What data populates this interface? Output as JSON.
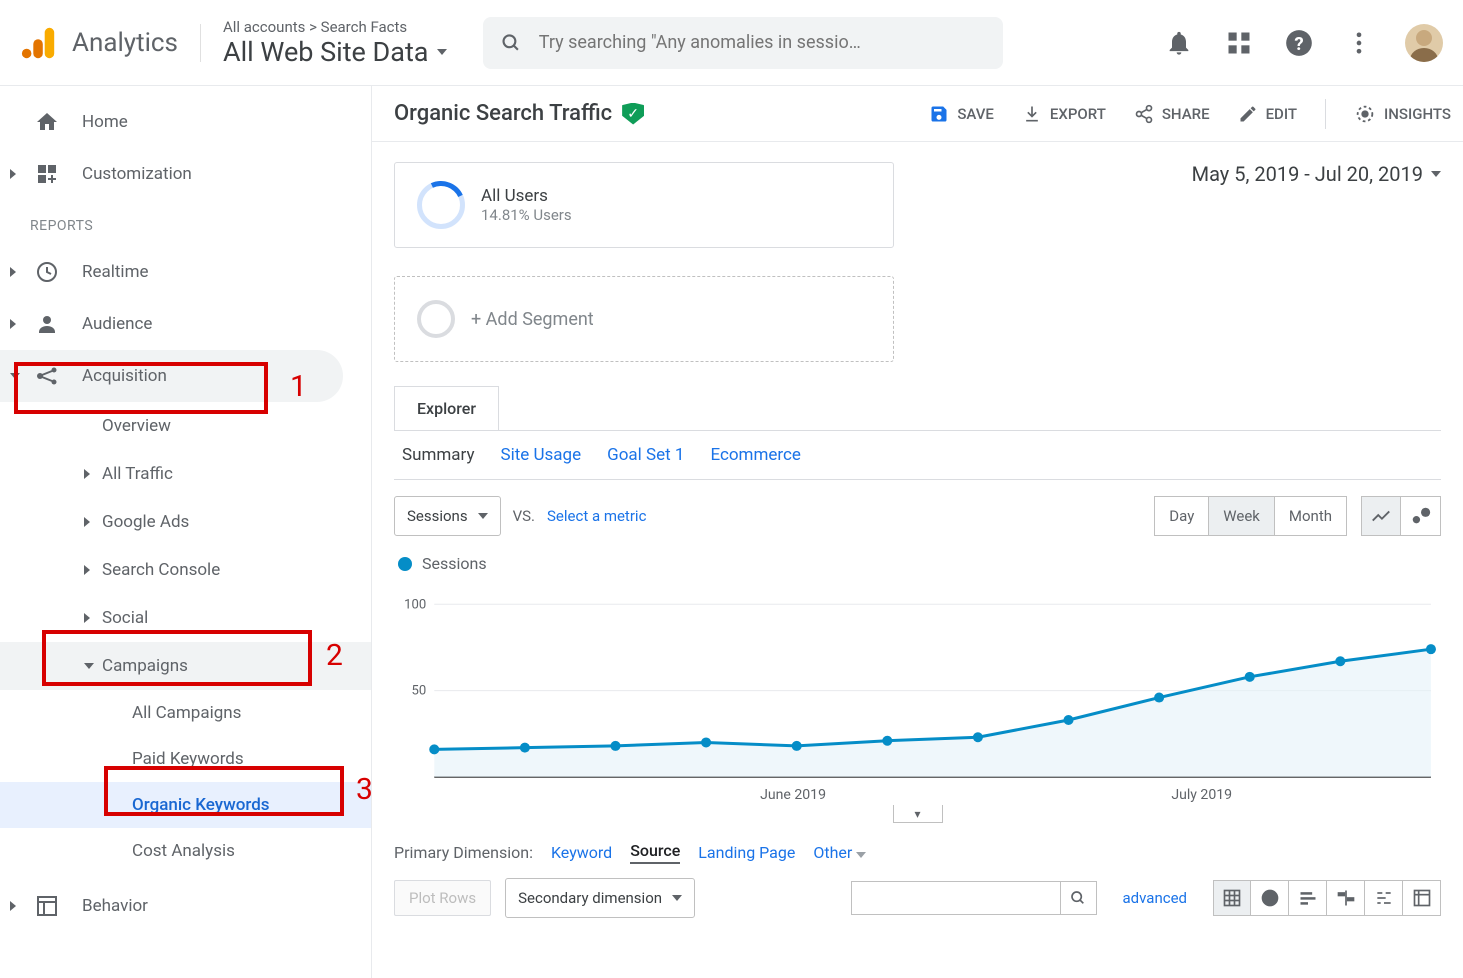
{
  "header": {
    "brand": "Analytics",
    "breadcrumb": "All accounts > Search Facts",
    "data_view": "All Web Site Data",
    "search_placeholder": "Try searching \"Any anomalies in sessio…"
  },
  "sidebar": {
    "home": "Home",
    "customization": "Customization",
    "reports_label": "REPORTS",
    "realtime": "Realtime",
    "audience": "Audience",
    "acquisition": "Acquisition",
    "acq_children": {
      "overview": "Overview",
      "all_traffic": "All Traffic",
      "google_ads": "Google Ads",
      "search_console": "Search Console",
      "social": "Social",
      "campaigns": "Campaigns",
      "camp_children": {
        "all_campaigns": "All Campaigns",
        "paid_keywords": "Paid Keywords",
        "organic_keywords": "Organic Keywords",
        "cost_analysis": "Cost Analysis"
      }
    },
    "behavior": "Behavior"
  },
  "annotations": {
    "a1": "1",
    "a2": "2",
    "a3": "3"
  },
  "page": {
    "title": "Organic Search Traffic",
    "actions": {
      "save": "SAVE",
      "export": "EXPORT",
      "share": "SHARE",
      "edit": "EDIT",
      "insights": "INSIGHTS"
    },
    "segment": {
      "name": "All Users",
      "sub": "14.81% Users",
      "add": "+ Add Segment"
    },
    "date_range": "May 5, 2019 - Jul 20, 2019",
    "explorer_tab": "Explorer",
    "subtabs": {
      "summary": "Summary",
      "site_usage": "Site Usage",
      "goal_set": "Goal Set 1",
      "ecommerce": "Ecommerce"
    },
    "metric_dd": "Sessions",
    "vs": "VS.",
    "select_metric": "Select a metric",
    "time": {
      "day": "Day",
      "week": "Week",
      "month": "Month"
    },
    "legend": "Sessions"
  },
  "chart": {
    "type": "line",
    "color": "#058dc7",
    "fill_color": "#e4f2f9",
    "fill_opacity": 0.6,
    "background_color": "#ffffff",
    "grid_color": "#e8eaed",
    "marker_radius": 5,
    "line_width": 3,
    "ylim": [
      0,
      110
    ],
    "yticks": [
      50,
      100
    ],
    "x_labels": [
      "June 2019",
      "July 2019"
    ],
    "x_values": [
      0,
      1,
      2,
      3,
      4,
      5,
      6,
      7,
      8,
      9,
      10,
      11
    ],
    "y_values": [
      16,
      17,
      18,
      20,
      18,
      21,
      23,
      33,
      46,
      58,
      67,
      74
    ]
  },
  "dimension": {
    "label": "Primary Dimension:",
    "keyword": "Keyword",
    "source": "Source",
    "landing_page": "Landing Page",
    "other": "Other"
  },
  "bottom": {
    "plot_rows": "Plot Rows",
    "secondary_dim": "Secondary dimension",
    "advanced": "advanced"
  }
}
